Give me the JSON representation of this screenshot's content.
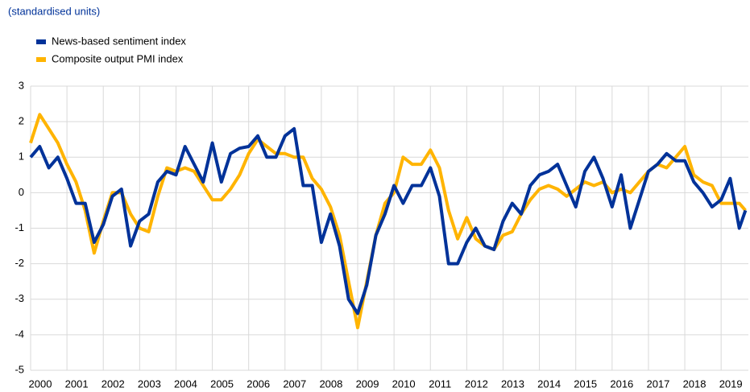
{
  "chart_data": {
    "type": "line",
    "subtitle": "(standardised units)",
    "x": [
      2000,
      2000.25,
      2000.5,
      2000.75,
      2001,
      2001.25,
      2001.5,
      2001.75,
      2002,
      2002.25,
      2002.5,
      2002.75,
      2003,
      2003.25,
      2003.5,
      2003.75,
      2004,
      2004.25,
      2004.5,
      2004.75,
      2005,
      2005.25,
      2005.5,
      2005.75,
      2006,
      2006.25,
      2006.5,
      2006.75,
      2007,
      2007.25,
      2007.5,
      2007.75,
      2008,
      2008.25,
      2008.5,
      2008.75,
      2009,
      2009.25,
      2009.5,
      2009.75,
      2010,
      2010.25,
      2010.5,
      2010.75,
      2011,
      2011.25,
      2011.5,
      2011.75,
      2012,
      2012.25,
      2012.5,
      2012.75,
      2013,
      2013.25,
      2013.5,
      2013.75,
      2014,
      2014.25,
      2014.5,
      2014.75,
      2015,
      2015.25,
      2015.5,
      2015.75,
      2016,
      2016.25,
      2016.5,
      2016.75,
      2017,
      2017.25,
      2017.5,
      2017.75,
      2018,
      2018.25,
      2018.5,
      2018.75,
      2019,
      2019.25,
      2019.5,
      2019.67
    ],
    "series": [
      {
        "name": "News-based sentiment index",
        "color": "#003299",
        "values": [
          1.0,
          1.3,
          0.7,
          1.0,
          0.4,
          -0.3,
          -0.3,
          -1.4,
          -0.9,
          -0.1,
          0.1,
          -1.5,
          -0.8,
          -0.6,
          0.3,
          0.6,
          0.5,
          1.3,
          0.8,
          0.3,
          1.4,
          0.3,
          1.1,
          1.25,
          1.3,
          1.6,
          1.0,
          1.0,
          1.6,
          1.8,
          0.2,
          0.2,
          -1.4,
          -0.6,
          -1.5,
          -3.0,
          -3.4,
          -2.6,
          -1.2,
          -0.6,
          0.2,
          -0.3,
          0.2,
          0.2,
          0.7,
          -0.1,
          -2.0,
          -2.0,
          -1.4,
          -1.0,
          -1.5,
          -1.6,
          -0.8,
          -0.3,
          -0.6,
          0.2,
          0.5,
          0.6,
          0.8,
          0.2,
          -0.4,
          0.6,
          1.0,
          0.4,
          -0.4,
          0.5,
          -1.0,
          -0.2,
          0.6,
          0.8,
          1.1,
          0.9,
          0.9,
          0.3,
          0.0,
          -0.4,
          -0.2,
          0.4,
          -1.0,
          -0.5
        ]
      },
      {
        "name": "Composite output PMI index",
        "color": "#ffb400",
        "values": [
          1.4,
          2.2,
          1.8,
          1.4,
          0.8,
          0.3,
          -0.5,
          -1.7,
          -0.8,
          0.0,
          0.0,
          -0.6,
          -1.0,
          -1.1,
          -0.1,
          0.7,
          0.6,
          0.7,
          0.6,
          0.2,
          -0.2,
          -0.2,
          0.1,
          0.5,
          1.1,
          1.5,
          1.3,
          1.1,
          1.1,
          1.0,
          1.0,
          0.4,
          0.1,
          -0.4,
          -1.2,
          -2.5,
          -3.8,
          -2.5,
          -1.2,
          -0.3,
          0.0,
          1.0,
          0.8,
          0.8,
          1.2,
          0.7,
          -0.5,
          -1.3,
          -0.7,
          -1.3,
          -1.5,
          -1.6,
          -1.2,
          -1.1,
          -0.6,
          -0.2,
          0.1,
          0.2,
          0.1,
          -0.1,
          0.1,
          0.3,
          0.2,
          0.3,
          0.0,
          0.1,
          0.0,
          0.3,
          0.6,
          0.8,
          0.7,
          1.0,
          1.3,
          0.5,
          0.3,
          0.2,
          -0.3,
          -0.3,
          -0.3,
          -0.5
        ]
      }
    ],
    "xlim": [
      2000,
      2019.75
    ],
    "xticks": [
      2000,
      2001,
      2002,
      2003,
      2004,
      2005,
      2006,
      2007,
      2008,
      2009,
      2010,
      2011,
      2012,
      2013,
      2014,
      2015,
      2016,
      2017,
      2018,
      2019
    ],
    "ylim": [
      -5,
      3
    ],
    "yticks": [
      -5,
      -4,
      -3,
      -2,
      -1,
      0,
      1,
      2,
      3
    ],
    "grid": true
  }
}
